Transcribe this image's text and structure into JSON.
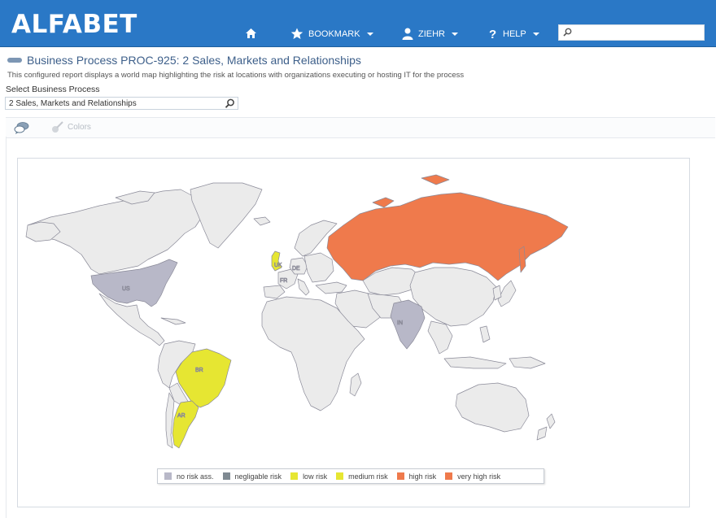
{
  "header": {
    "logo": "ALFABET",
    "nav": {
      "home_icon": "home-icon",
      "bookmark_label": "BOOKMARK",
      "user_label": "ZIEHR",
      "help_label": "HELP"
    },
    "search": {
      "placeholder": ""
    }
  },
  "page": {
    "title": "Business Process PROC-925: 2 Sales, Markets and Relationships",
    "subtitle": "This configured report displays a world map highlighting the risk at locations with organizations executing or hosting IT for the process",
    "select_label": "Select Business Process",
    "select_value": "2 Sales, Markets and Relationships"
  },
  "toolbar": {
    "comment_icon": "comment-icon",
    "colors_label": "Colors"
  },
  "map": {
    "country_labels": [
      "US",
      "UK",
      "DE",
      "FR",
      "IN",
      "BR",
      "AR"
    ],
    "colors": {
      "base": "#ebebeb",
      "border": "#8a8a98",
      "no_risk": "#b8b8c8",
      "negligable": "#7f8a92",
      "low": "#e6e632",
      "medium": "#e6e632",
      "high": "#ef7a4c",
      "very_high": "#ef7a4c"
    },
    "legend": [
      {
        "label": "no risk ass.",
        "color": "#b8b8c8"
      },
      {
        "label": "negligable risk",
        "color": "#7f8a92"
      },
      {
        "label": "low risk",
        "color": "#e6e632"
      },
      {
        "label": "medium risk",
        "color": "#e6e632"
      },
      {
        "label": "high risk",
        "color": "#ef7a4c"
      },
      {
        "label": "very high risk",
        "color": "#ef7a4c"
      }
    ]
  }
}
